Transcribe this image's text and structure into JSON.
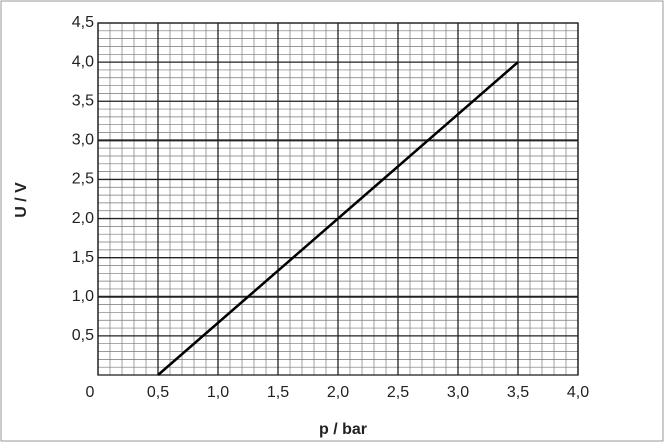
{
  "chart_data": {
    "type": "line",
    "x_label": "p / bar",
    "y_label": "U / V",
    "x": [
      0.5,
      3.5
    ],
    "series": [
      {
        "values": [
          0,
          4.0
        ],
        "color": "#000000"
      }
    ],
    "xlim": [
      0,
      4.0
    ],
    "xticks": [
      0,
      {
        "value": 0.5,
        "label": "0,5"
      },
      {
        "value": 1.0,
        "label": "1,0"
      },
      {
        "value": 1.5,
        "label": "1,5"
      },
      {
        "value": 2.0,
        "label": "2,0"
      },
      {
        "value": 2.5,
        "label": "2,5"
      },
      {
        "value": 3.0,
        "label": "3,0"
      },
      {
        "value": 3.5,
        "label": "3,5"
      },
      {
        "value": 4.0,
        "label": "4,0"
      }
    ],
    "ylim": [
      0,
      4.5
    ],
    "yticks": [
      {
        "value": 0.5,
        "label": "0,5"
      },
      {
        "value": 1.0,
        "label": "1,0"
      },
      {
        "value": 1.5,
        "label": "1,5"
      },
      {
        "value": 2.0,
        "label": "2,0"
      },
      {
        "value": 2.5,
        "label": "2,5"
      },
      {
        "value": 3.0,
        "label": "3,0"
      },
      {
        "value": 3.5,
        "label": "3,5"
      },
      {
        "value": 4.0,
        "label": "4,0"
      },
      {
        "value": 4.5,
        "label": "4,5"
      }
    ],
    "grid": true
  }
}
